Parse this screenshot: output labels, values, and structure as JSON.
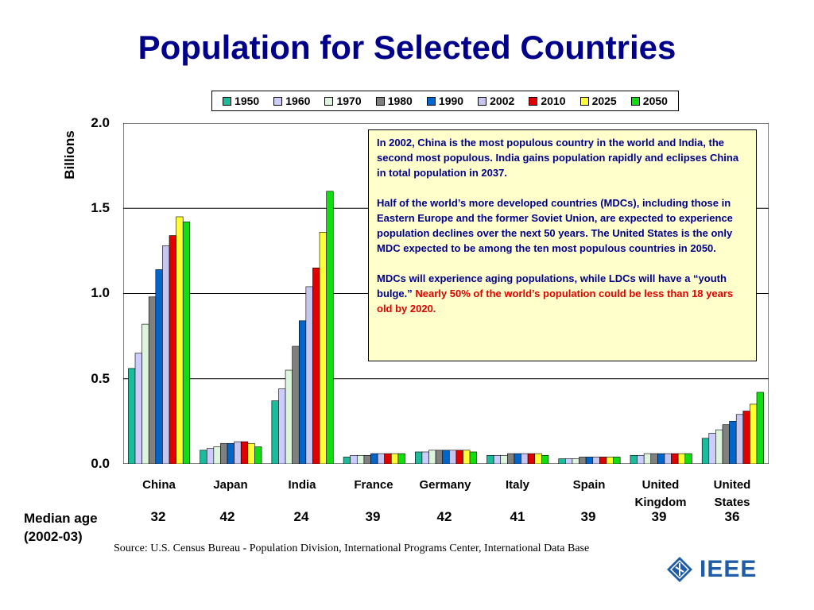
{
  "title": "Population for Selected Countries",
  "chart_data": {
    "type": "bar",
    "ylabel": "Billions",
    "ylim": [
      0,
      2.0
    ],
    "yticks": [
      "2.0",
      "1.5",
      "1.0",
      "0.5",
      "0.0"
    ],
    "categories": [
      "China",
      "Japan",
      "India",
      "France",
      "Germany",
      "Italy",
      "Spain",
      "United Kingdom",
      "United States"
    ],
    "series": [
      {
        "name": "1950",
        "color": "#1BBC9B",
        "values": [
          0.56,
          0.08,
          0.37,
          0.04,
          0.07,
          0.05,
          0.03,
          0.05,
          0.15
        ]
      },
      {
        "name": "1960",
        "color": "#CCCCFF",
        "values": [
          0.65,
          0.09,
          0.44,
          0.05,
          0.07,
          0.05,
          0.03,
          0.05,
          0.18
        ]
      },
      {
        "name": "1970",
        "color": "#DDF5DD",
        "values": [
          0.82,
          0.1,
          0.55,
          0.05,
          0.08,
          0.05,
          0.03,
          0.06,
          0.2
        ]
      },
      {
        "name": "1980",
        "color": "#808080",
        "values": [
          0.98,
          0.12,
          0.69,
          0.05,
          0.08,
          0.06,
          0.04,
          0.06,
          0.23
        ]
      },
      {
        "name": "1990",
        "color": "#0066CC",
        "values": [
          1.14,
          0.12,
          0.84,
          0.06,
          0.08,
          0.06,
          0.04,
          0.06,
          0.25
        ]
      },
      {
        "name": "2002",
        "color": "#C6C6F0",
        "values": [
          1.28,
          0.13,
          1.04,
          0.06,
          0.08,
          0.06,
          0.04,
          0.06,
          0.29
        ]
      },
      {
        "name": "2010",
        "color": "#E00000",
        "values": [
          1.34,
          0.13,
          1.15,
          0.06,
          0.08,
          0.06,
          0.04,
          0.06,
          0.31
        ]
      },
      {
        "name": "2025",
        "color": "#FFFF33",
        "values": [
          1.45,
          0.12,
          1.36,
          0.06,
          0.08,
          0.06,
          0.04,
          0.06,
          0.35
        ]
      },
      {
        "name": "2050",
        "color": "#11DD11",
        "values": [
          1.42,
          0.1,
          1.6,
          0.06,
          0.07,
          0.05,
          0.04,
          0.06,
          0.42
        ]
      }
    ],
    "grid": true,
    "legend_position": "top"
  },
  "median": {
    "label_line1": "Median age",
    "label_line2": "(2002-03)",
    "values": [
      "32",
      "42",
      "24",
      "39",
      "42",
      "41",
      "39",
      "39",
      "36"
    ]
  },
  "note": {
    "p1": "In 2002, China is the most populous country in the world and India, the second most populous.  India gains population rapidly and eclipses China in total population in 2037.",
    "p2": "Half of the world’s more developed countries (MDCs), including those in Eastern Europe and the former Soviet Union, are expected to experience population declines over the next 50 years.  The United States is the only MDC expected to be among the ten most populous countries in 2050.",
    "p3a": "MDCs will experience aging populations, while LDCs will have a “youth bulge.”  ",
    "p3b": "Nearly 50% of the world’s population could be less than 18 years old by 2020."
  },
  "source": "Source:  U.S. Census Bureau - Population Division, International Programs Center, International Data Base",
  "logo": {
    "text": "IEEE",
    "color": "#1F5CA8"
  }
}
